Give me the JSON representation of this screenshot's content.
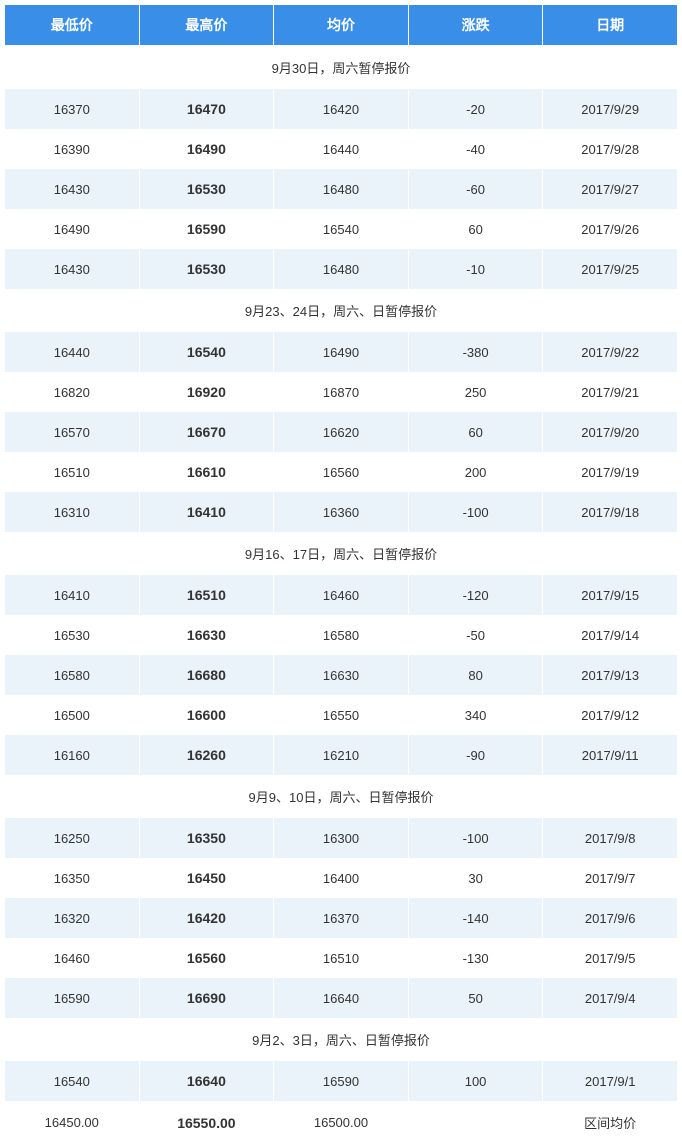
{
  "table": {
    "type": "table",
    "header_bg": "#398ee8",
    "header_fg": "#ffffff",
    "stripe_a_bg": "#eaf2fa",
    "stripe_b_bg": "#ffffff",
    "text_color": "#333333",
    "border_color": "#ffffff",
    "columns": [
      "最低价",
      "最高价",
      "均价",
      "涨跌",
      "日期"
    ],
    "col_widths_pct": [
      20,
      20,
      20,
      20,
      20
    ],
    "high_col_bold": true,
    "rows": [
      {
        "kind": "note",
        "text": "9月30日，周六暂停报价"
      },
      {
        "kind": "data",
        "low": "16370",
        "high": "16470",
        "avg": "16420",
        "chg": "-20",
        "date": "2017/9/29"
      },
      {
        "kind": "data",
        "low": "16390",
        "high": "16490",
        "avg": "16440",
        "chg": "-40",
        "date": "2017/9/28"
      },
      {
        "kind": "data",
        "low": "16430",
        "high": "16530",
        "avg": "16480",
        "chg": "-60",
        "date": "2017/9/27"
      },
      {
        "kind": "data",
        "low": "16490",
        "high": "16590",
        "avg": "16540",
        "chg": "60",
        "date": "2017/9/26"
      },
      {
        "kind": "data",
        "low": "16430",
        "high": "16530",
        "avg": "16480",
        "chg": "-10",
        "date": "2017/9/25"
      },
      {
        "kind": "note",
        "text": "9月23、24日，周六、日暂停报价"
      },
      {
        "kind": "data",
        "low": "16440",
        "high": "16540",
        "avg": "16490",
        "chg": "-380",
        "date": "2017/9/22"
      },
      {
        "kind": "data",
        "low": "16820",
        "high": "16920",
        "avg": "16870",
        "chg": "250",
        "date": "2017/9/21"
      },
      {
        "kind": "data",
        "low": "16570",
        "high": "16670",
        "avg": "16620",
        "chg": "60",
        "date": "2017/9/20"
      },
      {
        "kind": "data",
        "low": "16510",
        "high": "16610",
        "avg": "16560",
        "chg": "200",
        "date": "2017/9/19"
      },
      {
        "kind": "data",
        "low": "16310",
        "high": "16410",
        "avg": "16360",
        "chg": "-100",
        "date": "2017/9/18"
      },
      {
        "kind": "note",
        "text": "9月16、17日，周六、日暂停报价"
      },
      {
        "kind": "data",
        "low": "16410",
        "high": "16510",
        "avg": "16460",
        "chg": "-120",
        "date": "2017/9/15"
      },
      {
        "kind": "data",
        "low": "16530",
        "high": "16630",
        "avg": "16580",
        "chg": "-50",
        "date": "2017/9/14"
      },
      {
        "kind": "data",
        "low": "16580",
        "high": "16680",
        "avg": "16630",
        "chg": "80",
        "date": "2017/9/13"
      },
      {
        "kind": "data",
        "low": "16500",
        "high": "16600",
        "avg": "16550",
        "chg": "340",
        "date": "2017/9/12"
      },
      {
        "kind": "data",
        "low": "16160",
        "high": "16260",
        "avg": "16210",
        "chg": "-90",
        "date": "2017/9/11"
      },
      {
        "kind": "note",
        "text": "9月9、10日，周六、日暂停报价"
      },
      {
        "kind": "data",
        "low": "16250",
        "high": "16350",
        "avg": "16300",
        "chg": "-100",
        "date": "2017/9/8"
      },
      {
        "kind": "data",
        "low": "16350",
        "high": "16450",
        "avg": "16400",
        "chg": "30",
        "date": "2017/9/7"
      },
      {
        "kind": "data",
        "low": "16320",
        "high": "16420",
        "avg": "16370",
        "chg": "-140",
        "date": "2017/9/6"
      },
      {
        "kind": "data",
        "low": "16460",
        "high": "16560",
        "avg": "16510",
        "chg": "-130",
        "date": "2017/9/5"
      },
      {
        "kind": "data",
        "low": "16590",
        "high": "16690",
        "avg": "16640",
        "chg": "50",
        "date": "2017/9/4"
      },
      {
        "kind": "note",
        "text": "9月2、3日，周六、日暂停报价"
      },
      {
        "kind": "data",
        "low": "16540",
        "high": "16640",
        "avg": "16590",
        "chg": "100",
        "date": "2017/9/1"
      },
      {
        "kind": "data",
        "low": "16450.00",
        "high": "16550.00",
        "avg": "16500.00",
        "chg": "",
        "date": "区间均价"
      }
    ]
  }
}
